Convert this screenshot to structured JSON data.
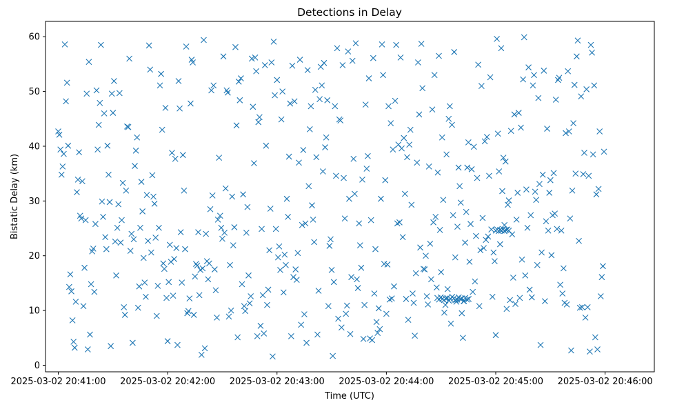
{
  "chart_data": {
    "type": "scatter",
    "title": "Detections in Delay",
    "xlabel": "Time (UTC)",
    "ylabel": "Bistatic Delay (km)",
    "marker": "x",
    "color": "#1f77b4",
    "x_ticks": [
      "2025-03-02 20:41:00",
      "2025-03-02 20:42:00",
      "2025-03-02 20:43:00",
      "2025-03-02 20:44:00",
      "2025-03-02 20:45:00",
      "2025-03-02 20:46:00"
    ],
    "y_ticks": [
      "0",
      "10",
      "20",
      "30",
      "40",
      "50",
      "60"
    ],
    "xlim": [
      "2025-03-02 20:40:53",
      "2025-03-02 20:46:27"
    ],
    "ylim": [
      -1.2,
      62.8
    ],
    "grid": false,
    "series": [
      {
        "x_start": "2025-03-02 20:41:00",
        "x_step_seconds": 0.6,
        "x_count": 500,
        "values": [
          42.7,
          42.1,
          39.4,
          34.8,
          36.3,
          38.6,
          58.6,
          48.2,
          51.6,
          40.1,
          14.3,
          16.6,
          13.5,
          8.2,
          4.3,
          3.2,
          11.6,
          31.6,
          33.9,
          38.9,
          27.3,
          26.8,
          33.6,
          10.8,
          17.8,
          26.5,
          49.6,
          2.9,
          55.4,
          5.6,
          14.8,
          20.8,
          21.3,
          13.4,
          25.8,
          50.2,
          39.4,
          43.9,
          47.9,
          58.5,
          29.9,
          27.1,
          46.0,
          23.4,
          21.2,
          40.1,
          34.8,
          29.8,
          3.5,
          49.6,
          46.1,
          51.9,
          22.6,
          16.4,
          25.1,
          29.4,
          49.7,
          22.4,
          26.5,
          33.3,
          10.6,
          9.2,
          31.9,
          43.6,
          43.5,
          56.0,
          20.9,
          24.0,
          4.1,
          23.0,
          36.4,
          39.2,
          41.6,
          10.5,
          14.4,
          25.1,
          33.5,
          28.1,
          19.6,
          15.1,
          12.5,
          31.1,
          22.7,
          58.4,
          54.0,
          20.6,
          34.7,
          30.8,
          29.5,
          23.3,
          9.0,
          14.5,
          25.1,
          51.1,
          53.2,
          43.0,
          18.6,
          17.6,
          47.0,
          12.3,
          4.4,
          15.2,
          22.0,
          18.9,
          38.8,
          12.7,
          19.4,
          37.7,
          21.4,
          3.7,
          51.9,
          46.9,
          24.3,
          15.1,
          38.4,
          31.9,
          21.2,
          58.2,
          9.5,
          9.9,
          12.2,
          47.8,
          55.8,
          55.3,
          9.2,
          16.2,
          18.5,
          18.2,
          24.3,
          12.8,
          17.4,
          1.9,
          17.7,
          59.4,
          3.1,
          24.0,
          19.0,
          15.7,
          18.6,
          28.5,
          50.2,
          31.0,
          51.1,
          17.5,
          13.7,
          8.7,
          26.6,
          37.9,
          27.3,
          25.1,
          23.1,
          56.4,
          24.2,
          32.3,
          50.2,
          49.8,
          8.9,
          18.3,
          10.0,
          30.8,
          21.9,
          25.2,
          58.1,
          43.8,
          5.1,
          51.8,
          48.4,
          52.4,
          14.8,
          31.2,
          10.8,
          9.9,
          24.2,
          28.9,
          16.4,
          11.3,
          12.6,
          56.0,
          47.2,
          36.9,
          56.2,
          53.7,
          5.3,
          44.4,
          45.3,
          7.2,
          24.9,
          12.8,
          5.8,
          54.8,
          40.1,
          11.0,
          13.8,
          21.0,
          28.6,
          55.3,
          1.6,
          59.1,
          49.3,
          24.9,
          52.1,
          19.7,
          21.7,
          17.4,
          44.9,
          50.0,
          13.3,
          20.2,
          18.3,
          30.4,
          27.1,
          38.1,
          47.8,
          5.3,
          54.7,
          16.1,
          48.2,
          17.5,
          15.6,
          20.5,
          37.0,
          55.8,
          7.4,
          25.6,
          39.3,
          9.3,
          25.9,
          4.1,
          53.9,
          32.7,
          43.1,
          47.3,
          29.2,
          26.6,
          22.5,
          50.3,
          38.0,
          5.6,
          13.6,
          48.6,
          54.5,
          51.1,
          35.4,
          55.2,
          39.8,
          41.6,
          48.4,
          10.8,
          21.8,
          23.0,
          17.4,
          1.7,
          15.2,
          47.3,
          34.6,
          57.9,
          8.5,
          44.9,
          44.7,
          6.9,
          54.8,
          34.2,
          26.8,
          9.4,
          10.9,
          57.3,
          30.4,
          5.7,
          16.1,
          55.6,
          37.7,
          31.3,
          58.8,
          15.7,
          14.1,
          25.9,
          21.9,
          17.8,
          33.9,
          4.8,
          11.0,
          47.6,
          35.9,
          38.2,
          52.4,
          4.9,
          26.5,
          4.6,
          56.1,
          13.1,
          21.2,
          7.9,
          5.9,
          10.4,
          6.6,
          30.4,
          58.6,
          53.0,
          18.5,
          33.8,
          9.4,
          18.4,
          47.3,
          12.0,
          44.2,
          12.2,
          39.4,
          14.4,
          48.3,
          58.5,
          25.9,
          40.3,
          26.1,
          56.2,
          39.6,
          23.4,
          41.5,
          31.3,
          12.1,
          38.0,
          8.3,
          40.3,
          43.0,
          29.3,
          13.1,
          11.4,
          5.4,
          16.8,
          37.0,
          55.3,
          45.8,
          21.5,
          58.7,
          50.6,
          17.6,
          17.5,
          20.0,
          12.6,
          11.1,
          36.3,
          22.2,
          15.7,
          46.7,
          26.1,
          53.0,
          27.1,
          14.2,
          35.2,
          56.5,
          24.7,
          17.0,
          41.6,
          30.2,
          9.6,
          11.0,
          38.5,
          13.9,
          45.0,
          47.3,
          7.6,
          43.9,
          27.4,
          57.2,
          19.7,
          11.6,
          25.3,
          36.1,
          32.7,
          29.7,
          9.5,
          5.0,
          11.7,
          22.4,
          28.0,
          36.1,
          40.7,
          18.9,
          25.8,
          35.8,
          13.4,
          39.9,
          15.3,
          23.6,
          34.2,
          54.9,
          10.8,
          21.0,
          51.0,
          26.9,
          21.4,
          40.9,
          22.9,
          41.7,
          23.5,
          34.6,
          52.6,
          24.8,
          12.5,
          20.6,
          19.0,
          5.5,
          59.6,
          42.3,
          35.4,
          22.1,
          57.9,
          31.8,
          37.9,
          25.6,
          37.2,
          10.3,
          29.3,
          30.1,
          11.9,
          42.8,
          23.9,
          16.0,
          45.8,
          11.2,
          26.6,
          31.5,
          46.1,
          12.3,
          43.4,
          19.3,
          52.2,
          59.9,
          16.4,
          32.1,
          25.1,
          54.4,
          13.8,
          27.4,
          12.4,
          51.1,
          53.0,
          31.7,
          30.2,
          18.3,
          48.8,
          33.1,
          3.7,
          20.6,
          34.8,
          53.8,
          11.7,
          26.3,
          43.2,
          24.6,
          31.5,
          33.8,
          20.1,
          27.4,
          35.1,
          27.7,
          48.5,
          24.9,
          52.1,
          52.5,
          14.7,
          24.6,
          13.1,
          17.7,
          11.4,
          42.4,
          11.1,
          53.7,
          42.7,
          26.8,
          2.7,
          31.9,
          44.2,
          51.2,
          35.0,
          56.4,
          59.3,
          22.7,
          10.5,
          49.1,
          10.6,
          34.9,
          38.8,
          8.7,
          50.4,
          10.6,
          34.6,
          2.5,
          58.5,
          57.1,
          38.5,
          51.1,
          5.1,
          31.2,
          2.9,
          32.2,
          42.7,
          12.6,
          16.1,
          18.1,
          39.0
        ]
      },
      {
        "x_start": "2025-03-02 20:44:28",
        "x_step_seconds": 0.9,
        "x_count": 20,
        "values": [
          12.3,
          12.0,
          12.4,
          12.1,
          11.9,
          12.2,
          12.3,
          11.8,
          12.1,
          12.5,
          12.2,
          11.9,
          12.0,
          12.4,
          12.1,
          12.2,
          11.7,
          12.3,
          12.0,
          12.1
        ]
      },
      {
        "x_start": "2025-03-02 20:45:00",
        "x_step_seconds": 0.8,
        "x_count": 10,
        "values": [
          24.6,
          24.8,
          24.5,
          24.7,
          24.6,
          24.9,
          24.5,
          24.7,
          24.8,
          24.6
        ]
      }
    ]
  }
}
